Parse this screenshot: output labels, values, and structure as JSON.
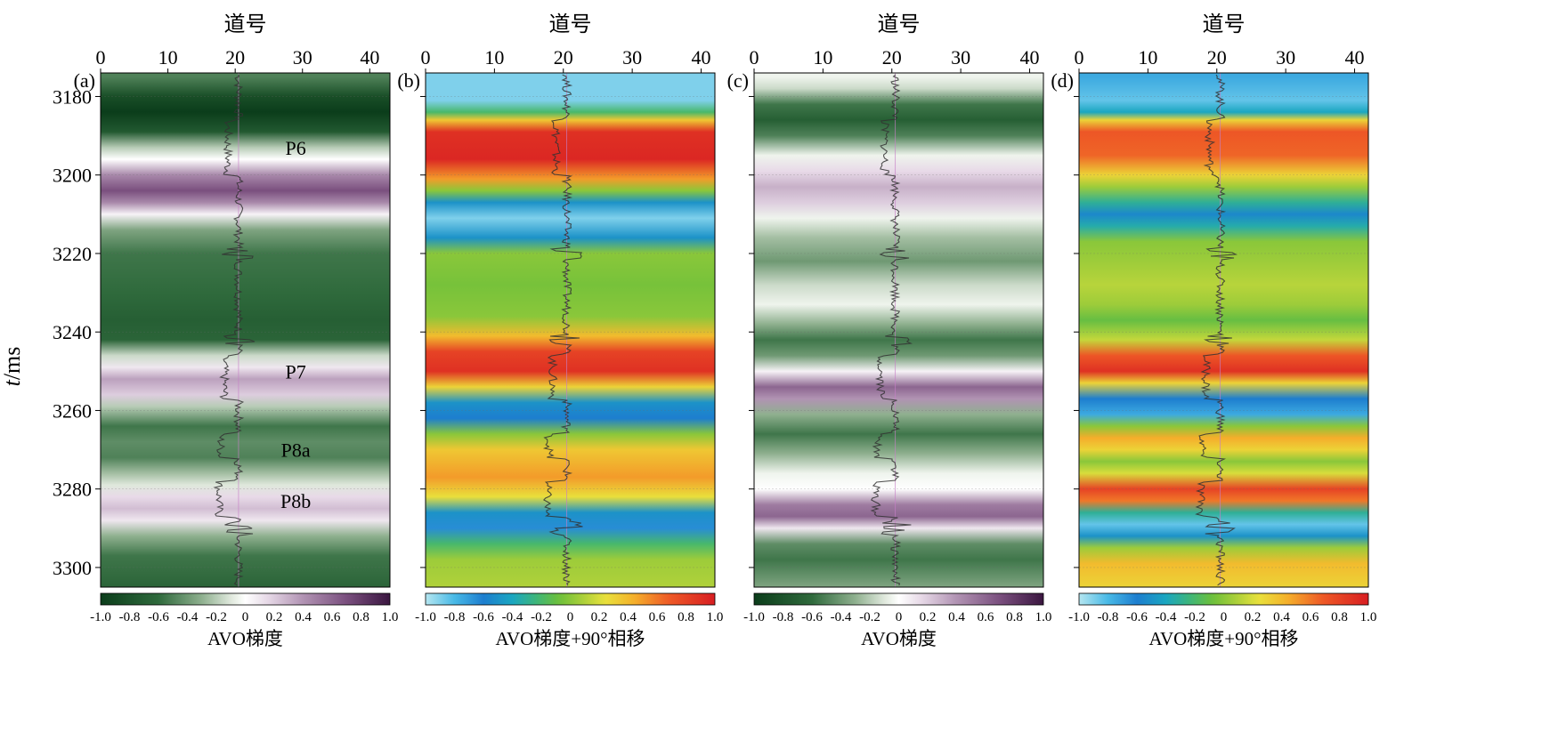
{
  "figure": {
    "y_axis_label_italic": "t",
    "y_axis_label_unit": "/ms"
  },
  "chart_data": [
    {
      "type": "heatmap",
      "panel_label": "(a)",
      "xlabel": "道号",
      "x_ticks": [
        0,
        10,
        20,
        30,
        40
      ],
      "xlim": [
        0,
        43
      ],
      "ylim": [
        3305,
        3174
      ],
      "y_ticks": [
        3180,
        3200,
        3220,
        3240,
        3260,
        3280,
        3300
      ],
      "colorscale": "green-white-purple",
      "colorbar_ticks": [
        "-1.0",
        "-0.8",
        "-0.6",
        "-0.4",
        "-0.2",
        "0",
        "0.2",
        "0.4",
        "0.6",
        "0.8",
        "1.0"
      ],
      "colorbar_label": "AVO梯度",
      "annotations": [
        {
          "text": "P6",
          "t": 3193,
          "trace": 29
        },
        {
          "text": "P7",
          "t": 3250,
          "trace": 29
        },
        {
          "text": "P8a",
          "t": 3270,
          "trace": 29
        },
        {
          "text": "P8b",
          "t": 3283,
          "trace": 29
        }
      ],
      "bands": [
        {
          "t": 3175,
          "v": -0.5
        },
        {
          "t": 3180,
          "v": -0.85
        },
        {
          "t": 3184,
          "v": -1.0
        },
        {
          "t": 3189,
          "v": -0.75
        },
        {
          "t": 3193,
          "v": -0.2
        },
        {
          "t": 3196,
          "v": 0.0
        },
        {
          "t": 3200,
          "v": 0.45
        },
        {
          "t": 3204,
          "v": 0.7
        },
        {
          "t": 3207,
          "v": 0.45
        },
        {
          "t": 3210,
          "v": 0.05
        },
        {
          "t": 3214,
          "v": -0.35
        },
        {
          "t": 3220,
          "v": -0.55
        },
        {
          "t": 3230,
          "v": -0.6
        },
        {
          "t": 3237,
          "v": -0.7
        },
        {
          "t": 3242,
          "v": -0.65
        },
        {
          "t": 3246,
          "v": -0.15
        },
        {
          "t": 3249,
          "v": 0.1
        },
        {
          "t": 3252,
          "v": 0.35
        },
        {
          "t": 3256,
          "v": 0.2
        },
        {
          "t": 3259,
          "v": -0.2
        },
        {
          "t": 3264,
          "v": -0.55
        },
        {
          "t": 3268,
          "v": -0.45
        },
        {
          "t": 3272,
          "v": -0.5
        },
        {
          "t": 3276,
          "v": -0.25
        },
        {
          "t": 3279,
          "v": -0.1
        },
        {
          "t": 3282,
          "v": 0.15
        },
        {
          "t": 3285,
          "v": 0.25
        },
        {
          "t": 3288,
          "v": 0.1
        },
        {
          "t": 3292,
          "v": -0.3
        },
        {
          "t": 3297,
          "v": -0.55
        },
        {
          "t": 3305,
          "v": -0.65
        }
      ]
    },
    {
      "type": "heatmap",
      "panel_label": "(b)",
      "xlabel": "道号",
      "x_ticks": [
        0,
        10,
        20,
        30,
        40
      ],
      "xlim": [
        0,
        42
      ],
      "ylim": [
        3305,
        3174
      ],
      "y_ticks": [
        3180,
        3200,
        3220,
        3240,
        3260,
        3280,
        3300
      ],
      "colorscale": "jet",
      "colorbar_ticks": [
        "-1.0",
        "-0.8",
        "-0.6",
        "-0.4",
        "-0.2",
        "0",
        "0.2",
        "0.4",
        "0.6",
        "0.8",
        "1.0"
      ],
      "colorbar_label": "AVO梯度+90°相移",
      "bands": [
        {
          "t": 3175,
          "v": -0.9
        },
        {
          "t": 3181,
          "v": -0.9
        },
        {
          "t": 3184,
          "v": -0.2
        },
        {
          "t": 3186,
          "v": 0.35
        },
        {
          "t": 3189,
          "v": 0.9
        },
        {
          "t": 3196,
          "v": 0.95
        },
        {
          "t": 3201,
          "v": 0.5
        },
        {
          "t": 3204,
          "v": 0.0
        },
        {
          "t": 3207,
          "v": -0.5
        },
        {
          "t": 3211,
          "v": -0.9
        },
        {
          "t": 3216,
          "v": -0.5
        },
        {
          "t": 3220,
          "v": 0.0
        },
        {
          "t": 3228,
          "v": -0.05
        },
        {
          "t": 3236,
          "v": 0.0
        },
        {
          "t": 3241,
          "v": 0.4
        },
        {
          "t": 3245,
          "v": 0.8
        },
        {
          "t": 3250,
          "v": 0.9
        },
        {
          "t": 3254,
          "v": 0.3
        },
        {
          "t": 3258,
          "v": -0.5
        },
        {
          "t": 3262,
          "v": -0.6
        },
        {
          "t": 3266,
          "v": 0.0
        },
        {
          "t": 3270,
          "v": 0.35
        },
        {
          "t": 3277,
          "v": 0.5
        },
        {
          "t": 3282,
          "v": 0.25
        },
        {
          "t": 3286,
          "v": -0.5
        },
        {
          "t": 3290,
          "v": -0.65
        },
        {
          "t": 3294,
          "v": -0.2
        },
        {
          "t": 3298,
          "v": 0.05
        },
        {
          "t": 3305,
          "v": 0.1
        }
      ]
    },
    {
      "type": "heatmap",
      "panel_label": "(c)",
      "xlabel": "道号",
      "x_ticks": [
        0,
        10,
        20,
        30,
        40
      ],
      "xlim": [
        0,
        42
      ],
      "ylim": [
        3305,
        3174
      ],
      "y_ticks": [
        3180,
        3200,
        3220,
        3240,
        3260,
        3280,
        3300
      ],
      "colorscale": "green-white-purple",
      "colorbar_ticks": [
        "-1.0",
        "-0.8",
        "-0.6",
        "-0.4",
        "-0.2",
        "0",
        "0.2",
        "0.4",
        "0.6",
        "0.8",
        "1.0"
      ],
      "colorbar_label": "AVO梯度",
      "bands": [
        {
          "t": 3175,
          "v": -0.05
        },
        {
          "t": 3178,
          "v": -0.15
        },
        {
          "t": 3182,
          "v": -0.55
        },
        {
          "t": 3186,
          "v": -0.7
        },
        {
          "t": 3190,
          "v": -0.5
        },
        {
          "t": 3195,
          "v": -0.05
        },
        {
          "t": 3199,
          "v": 0.15
        },
        {
          "t": 3203,
          "v": 0.3
        },
        {
          "t": 3207,
          "v": 0.2
        },
        {
          "t": 3211,
          "v": -0.05
        },
        {
          "t": 3216,
          "v": -0.25
        },
        {
          "t": 3222,
          "v": -0.4
        },
        {
          "t": 3228,
          "v": -0.15
        },
        {
          "t": 3233,
          "v": -0.05
        },
        {
          "t": 3238,
          "v": -0.3
        },
        {
          "t": 3242,
          "v": -0.55
        },
        {
          "t": 3246,
          "v": -0.4
        },
        {
          "t": 3250,
          "v": 0.05
        },
        {
          "t": 3254,
          "v": 0.6
        },
        {
          "t": 3257,
          "v": 0.4
        },
        {
          "t": 3261,
          "v": -0.3
        },
        {
          "t": 3266,
          "v": -0.55
        },
        {
          "t": 3271,
          "v": -0.3
        },
        {
          "t": 3276,
          "v": -0.05
        },
        {
          "t": 3280,
          "v": 0.0
        },
        {
          "t": 3284,
          "v": 0.5
        },
        {
          "t": 3287,
          "v": 0.6
        },
        {
          "t": 3290,
          "v": 0.1
        },
        {
          "t": 3294,
          "v": -0.45
        },
        {
          "t": 3298,
          "v": -0.55
        },
        {
          "t": 3305,
          "v": -0.35
        }
      ]
    },
    {
      "type": "heatmap",
      "panel_label": "(d)",
      "xlabel": "道号",
      "x_ticks": [
        0,
        10,
        20,
        30,
        40
      ],
      "xlim": [
        0,
        42
      ],
      "ylim": [
        3305,
        3174
      ],
      "y_ticks": [
        3180,
        3200,
        3220,
        3240,
        3260,
        3280,
        3300
      ],
      "colorscale": "jet",
      "colorbar_ticks": [
        "-1.0",
        "-0.8",
        "-0.6",
        "-0.4",
        "-0.2",
        "0",
        "0.2",
        "0.4",
        "0.6",
        "0.8",
        "1.0"
      ],
      "colorbar_label": "AVO梯度+90°相移",
      "bands": [
        {
          "t": 3175,
          "v": -0.75
        },
        {
          "t": 3181,
          "v": -0.85
        },
        {
          "t": 3184,
          "v": -0.4
        },
        {
          "t": 3186,
          "v": 0.3
        },
        {
          "t": 3189,
          "v": 0.7
        },
        {
          "t": 3195,
          "v": 0.65
        },
        {
          "t": 3200,
          "v": 0.3
        },
        {
          "t": 3203,
          "v": 0.05
        },
        {
          "t": 3207,
          "v": -0.3
        },
        {
          "t": 3210,
          "v": -0.55
        },
        {
          "t": 3213,
          "v": -0.35
        },
        {
          "t": 3217,
          "v": 0.0
        },
        {
          "t": 3222,
          "v": 0.05
        },
        {
          "t": 3228,
          "v": 0.12
        },
        {
          "t": 3233,
          "v": 0.05
        },
        {
          "t": 3237,
          "v": -0.1
        },
        {
          "t": 3242,
          "v": 0.15
        },
        {
          "t": 3246,
          "v": 0.7
        },
        {
          "t": 3250,
          "v": 0.9
        },
        {
          "t": 3253,
          "v": 0.3
        },
        {
          "t": 3257,
          "v": -0.6
        },
        {
          "t": 3261,
          "v": -0.75
        },
        {
          "t": 3264,
          "v": 0.0
        },
        {
          "t": 3267,
          "v": 0.45
        },
        {
          "t": 3270,
          "v": 0.3
        },
        {
          "t": 3273,
          "v": 0.0
        },
        {
          "t": 3276,
          "v": 0.2
        },
        {
          "t": 3280,
          "v": 0.8
        },
        {
          "t": 3283,
          "v": 0.6
        },
        {
          "t": 3286,
          "v": -0.3
        },
        {
          "t": 3289,
          "v": -0.85
        },
        {
          "t": 3292,
          "v": -0.5
        },
        {
          "t": 3295,
          "v": 0.05
        },
        {
          "t": 3299,
          "v": 0.4
        },
        {
          "t": 3305,
          "v": 0.3
        }
      ]
    }
  ]
}
